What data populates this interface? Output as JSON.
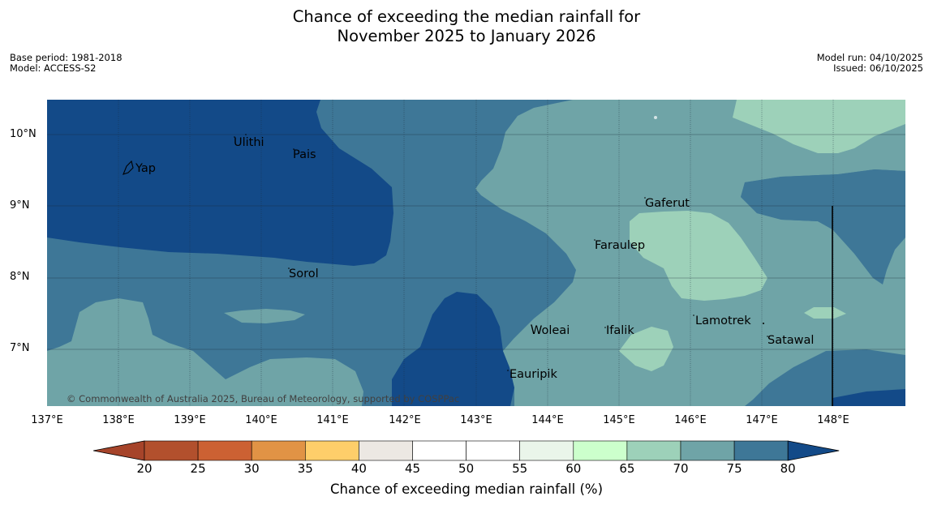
{
  "title": {
    "line1": "Chance of exceeding the median rainfall for",
    "line2": "November 2025 to January 2026"
  },
  "meta_left": {
    "base_period": "Base period: 1981-2018",
    "model": "Model: ACCESS-S2"
  },
  "meta_right": {
    "model_run": "Model run: 04/10/2025",
    "issued": "Issued: 06/10/2025"
  },
  "axes": {
    "latitudes": [
      "10°N",
      "9°N",
      "8°N",
      "7°N"
    ],
    "longitudes": [
      "137°E",
      "138°E",
      "139°E",
      "140°E",
      "141°E",
      "142°E",
      "143°E",
      "144°E",
      "145°E",
      "146°E",
      "147°E",
      "148°E"
    ]
  },
  "places": {
    "yap": "Yap",
    "ulithi": "Ulithi",
    "pais": "Pais",
    "gaferut": "Gaferut",
    "faraulep": "Faraulep",
    "sorol": "Sorol",
    "lamotrek": "Lamotrek",
    "woleai": "Woleai",
    "ifalik": "Ifalik",
    "satawal": "Satawal",
    "eauripik": "Eauripik"
  },
  "copyright": "© Commonwealth of Australia 2025, Bureau of Meteorology, supported by COSPPac",
  "colorbar": {
    "ticks": [
      "20",
      "25",
      "30",
      "35",
      "40",
      "45",
      "50",
      "55",
      "60",
      "65",
      "70",
      "75",
      "80"
    ],
    "label": "Chance of exceeding median rainfall (%)",
    "colors": [
      "#a6442a",
      "#b2502d",
      "#cc6133",
      "#e19345",
      "#fece6a",
      "#ece8e3",
      "#ffffff",
      "#ffffff",
      "#eaf5ea",
      "#ccffcc",
      "#9dd1b9",
      "#6fa4a7",
      "#3e7797",
      "#134a88"
    ]
  },
  "legend_colors": {
    "c80plus": "#134a88",
    "c75_80": "#3e7797",
    "c70_75": "#6fa4a7",
    "c65_70": "#9dd1b9"
  }
}
